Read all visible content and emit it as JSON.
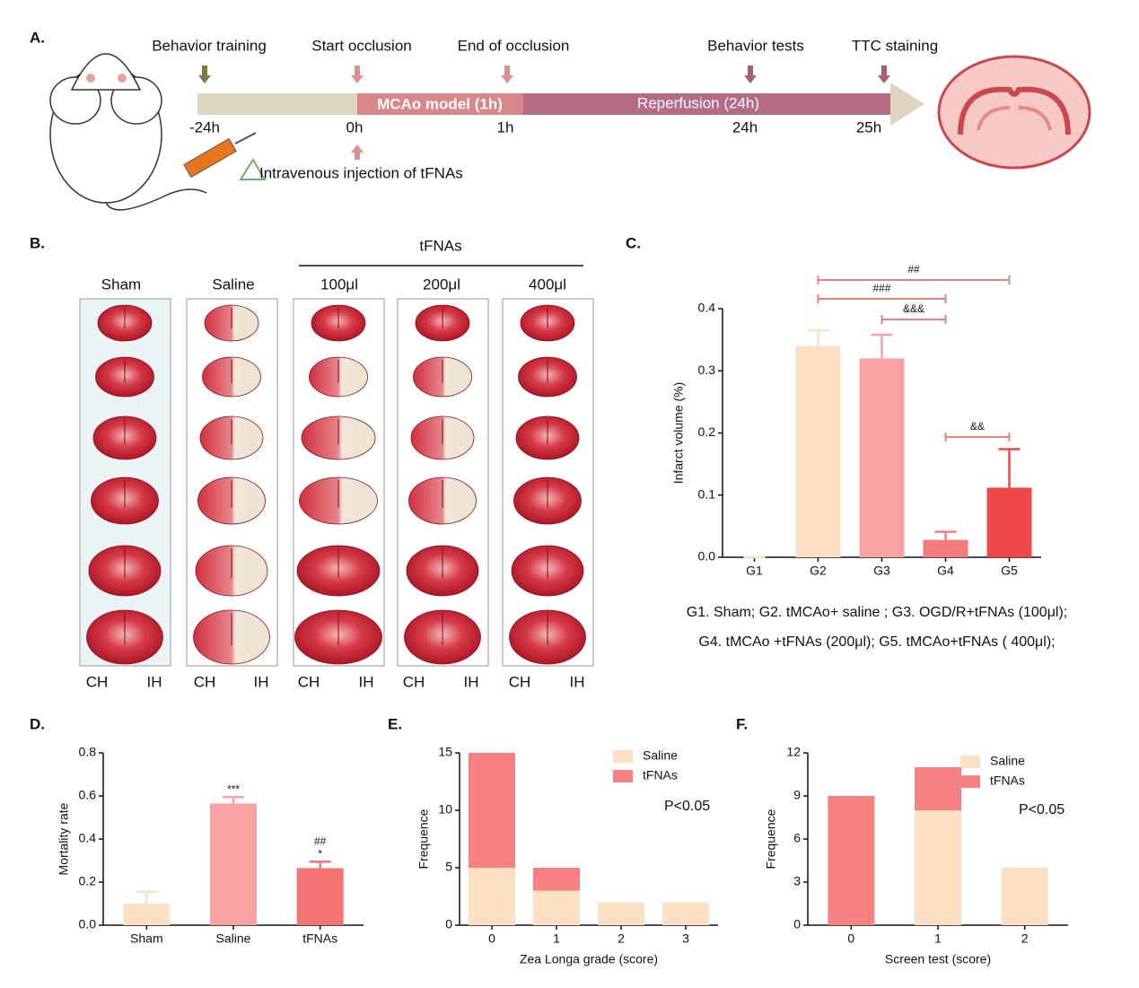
{
  "panels": [
    "A.",
    "B.",
    "C.",
    "D.",
    "E.",
    "F."
  ],
  "timeline": {
    "events": [
      "Behavior training",
      "Start occlusion",
      "End of occlusion",
      "Behavior tests",
      "TTC staining"
    ],
    "times": [
      "-24h",
      "0h",
      "1h",
      "24h",
      "25h"
    ],
    "phases": [
      "MCAo model (1h)",
      "Reperfusion (24h)"
    ],
    "injection": "Intravenous injection of tFNAs"
  },
  "staining": {
    "group": "tFNAs",
    "columns": [
      "Sham",
      "Saline",
      "100μl",
      "200μl",
      "400μl"
    ],
    "sides": [
      "CH",
      "IH"
    ]
  },
  "chart_data": [
    {
      "type": "bar",
      "categories": [
        "G1",
        "G2",
        "G3",
        "G4",
        "G5"
      ],
      "values": [
        0,
        0.34,
        0.32,
        0.028,
        0.112
      ],
      "errors": [
        0,
        0.025,
        0.038,
        0.013,
        0.062
      ],
      "colors": [
        "#fde0c4",
        "#fde0c4",
        "#f9a2a2",
        "#f47b7b",
        "#ef4646"
      ],
      "ylabel": "Infarct volume (%)",
      "ylim": [
        0,
        0.4
      ],
      "yticks": [
        {
          "value": 0,
          "label": "0.0"
        },
        0.1,
        0.2,
        0.3,
        0.4
      ],
      "annotations": [
        {
          "text": "##",
          "between": [
            "G2",
            "G5"
          ]
        },
        {
          "text": "###",
          "between": [
            "G2",
            "G4"
          ]
        },
        {
          "text": "&&&",
          "between": [
            "G3",
            "G4"
          ]
        },
        {
          "text": "&&",
          "between": [
            "G4",
            "G5"
          ]
        }
      ],
      "caption": [
        "G1. Sham; G2. tMCAo+ saline ; G3. OGD/R+tFNAs (100μl);",
        "G4. tMCAo +tFNAs (200μl); G5. tMCAo+tFNAs ( 400μl);"
      ]
    },
    {
      "type": "bar",
      "categories": [
        "Sham",
        "Saline",
        "tFNAs"
      ],
      "values": [
        0.1,
        0.565,
        0.265
      ],
      "errors": [
        0.055,
        0.03,
        0.03
      ],
      "colors": [
        "#fde0c4",
        "#f9a2a2",
        "#f47474"
      ],
      "ylabel": "Mortality rate",
      "ylim": [
        0,
        0.8
      ],
      "yticks": [
        {
          "value": 0,
          "label": "0.0"
        },
        0.2,
        0.4,
        0.6,
        0.8
      ],
      "annotations": [
        {
          "text": "***",
          "category": "Saline"
        },
        {
          "text": "*",
          "category": "tFNAs"
        },
        {
          "text": "##",
          "category": "tFNAs"
        }
      ]
    },
    {
      "type": "stacked_bar",
      "categories": [
        "0",
        "1",
        "2",
        "3"
      ],
      "series": [
        {
          "name": "Saline",
          "color": "#fde0c4",
          "values": [
            5,
            3,
            2,
            2
          ]
        },
        {
          "name": "tFNAs",
          "color": "#f78080",
          "values": [
            10,
            2,
            0,
            0
          ]
        }
      ],
      "xlabel": "Zea Longa grade (score)",
      "ylabel": "Frequence",
      "note": "P<0.05",
      "ylim": [
        0,
        15
      ],
      "yticks": [
        0,
        5,
        10,
        15
      ]
    },
    {
      "type": "stacked_bar",
      "categories": [
        "0",
        "1",
        "2"
      ],
      "series": [
        {
          "name": "Saline",
          "color": "#fde0c4",
          "values": [
            0,
            8,
            4
          ]
        },
        {
          "name": "tFNAs",
          "color": "#f78080",
          "values": [
            9,
            3,
            0
          ]
        }
      ],
      "xlabel": "Screen test (score)",
      "ylabel": "Frequence",
      "note": "P<0.05",
      "ylim": [
        0,
        12
      ],
      "yticks": [
        0,
        3,
        6,
        9,
        12
      ]
    }
  ]
}
